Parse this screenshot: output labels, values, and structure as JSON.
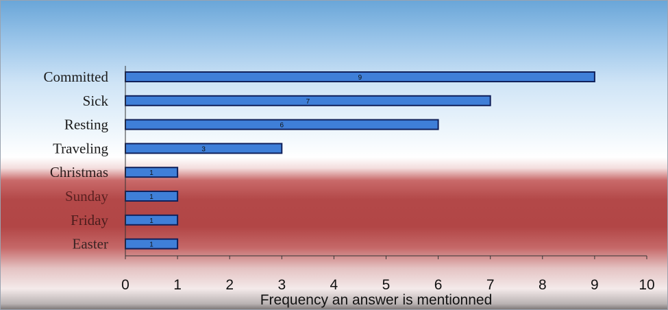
{
  "chart_data": {
    "type": "bar",
    "orientation": "horizontal",
    "title": "",
    "xlabel": "Frequency an answer is mentionned",
    "ylabel": "",
    "categories": [
      "Committed",
      "Sick",
      "Resting",
      "Traveling",
      "Christmas",
      "Sunday",
      "Friday",
      "Easter"
    ],
    "values": [
      9,
      7,
      6,
      3,
      1,
      1,
      1,
      1
    ],
    "data_labels": [
      "9",
      "7",
      "6",
      "3",
      "1",
      "1",
      "1",
      "1"
    ],
    "xlim": [
      0,
      10
    ],
    "x_ticks": [
      "0",
      "1",
      "2",
      "3",
      "4",
      "5",
      "6",
      "7",
      "8",
      "9",
      "10"
    ],
    "grid": false,
    "legend": "none",
    "bar_color": "#3f7fd8",
    "bar_edge_color": "#10205a",
    "category_label_colors": [
      "#1a1a1a",
      "#1a1a1a",
      "#1a1a1a",
      "#1a1a1a",
      "#2a1a1a",
      "#5a2020",
      "#4a1c1c",
      "#3a2424"
    ]
  }
}
